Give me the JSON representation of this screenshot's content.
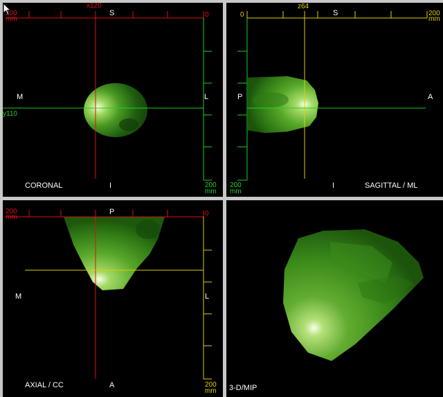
{
  "coronal": {
    "orientation": {
      "top": "S",
      "bottom": "I",
      "left": "M",
      "right": "L"
    },
    "view_label": "CORONAL",
    "crosshair_x": "x120",
    "crosshair_y": "y110",
    "top_scale": {
      "left_value": "200",
      "left_unit": "mm",
      "right_value": "0"
    },
    "right_scale": {
      "value": "200",
      "unit": "mm"
    }
  },
  "sagittal": {
    "orientation": {
      "top": "S",
      "bottom": "I",
      "left": "P",
      "right": "A"
    },
    "view_label": "SAGITTAL / ML",
    "crosshair_z": "z64",
    "top_scale": {
      "left_value": "0",
      "right_value": "200",
      "right_unit": "mm"
    },
    "left_scale": {
      "value": "200",
      "unit": "mm"
    }
  },
  "axial": {
    "orientation": {
      "top": "P",
      "bottom": "A",
      "left": "M",
      "right": "L"
    },
    "view_label": "AXIAL / CC",
    "top_scale": {
      "left_value": "200",
      "left_unit": "mm",
      "right_value": "0"
    },
    "right_scale": {
      "value": "200",
      "unit": "mm"
    }
  },
  "render3d": {
    "view_label": "3-D/MIP"
  },
  "colors": {
    "red_axis": "#e01010",
    "green_axis": "#20d020",
    "yellow_axis": "#e0d000",
    "divider": "#c8c8c8"
  }
}
